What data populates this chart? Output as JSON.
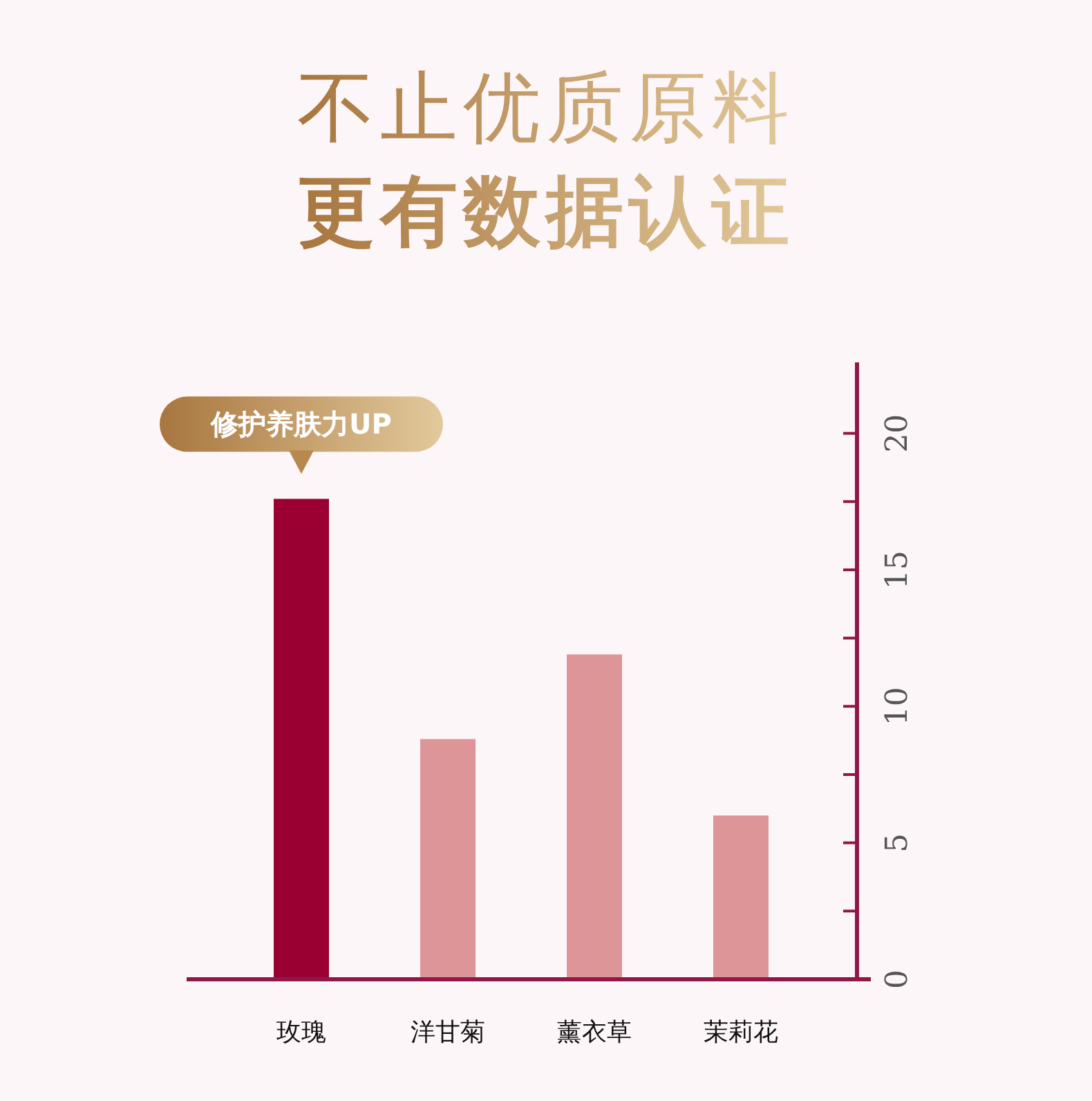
{
  "chart_data": {
    "type": "bar",
    "title": "不止优质原料",
    "subtitle": "更有数据认证",
    "categories": [
      "玫瑰",
      "洋甘菊",
      "薰衣草",
      "茉莉花"
    ],
    "values": [
      17.6,
      8.8,
      11.9,
      6.0
    ],
    "colors": [
      "#9b0033",
      "#dd9597",
      "#dd9597",
      "#dd9597"
    ],
    "ylim": [
      0,
      22.6
    ],
    "yticks": [
      0,
      {
        "value": 2.5,
        "label": null
      },
      5,
      {
        "value": 7.5,
        "label": null
      },
      10,
      {
        "value": 12.5,
        "label": null
      },
      15,
      {
        "value": 17.5,
        "label": null
      },
      20
    ],
    "annotations": [
      {
        "text": "修护养肤力UP",
        "x": "玫瑰",
        "y": 17.6
      }
    ],
    "grid": false
  }
}
